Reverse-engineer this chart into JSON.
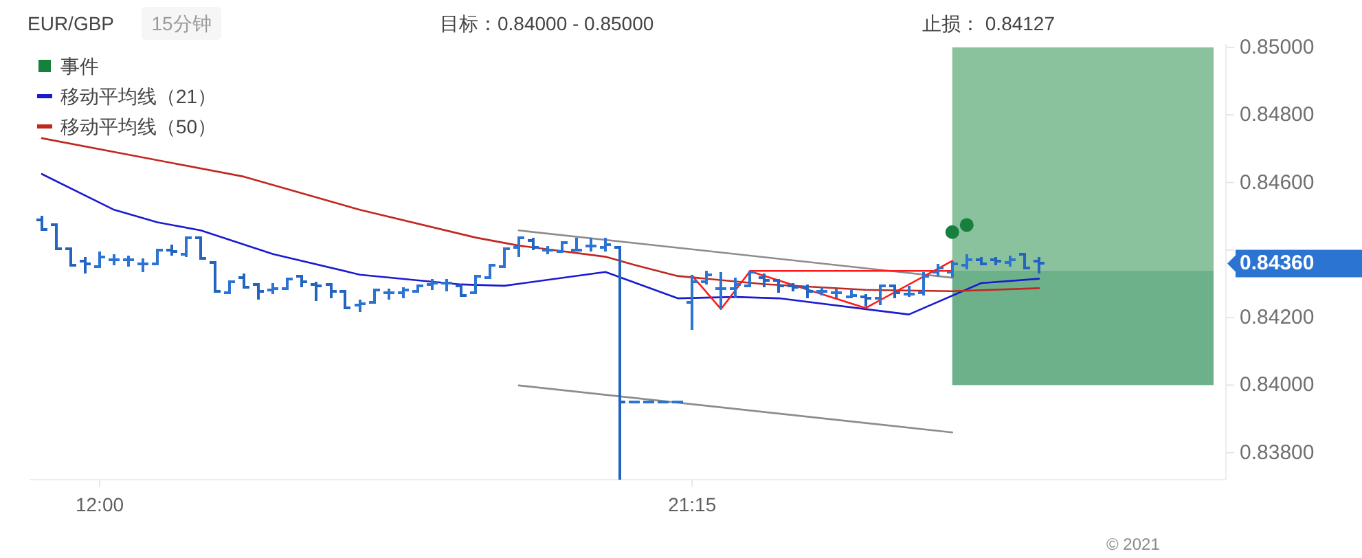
{
  "chart_data": {
    "type": "candlestick",
    "title": "EUR/GBP",
    "subtitle": "15分钟",
    "annotations": [
      "目标：0.84000 - 0.85000",
      "止损： 0.84127",
      "0.84360",
      "© 2021"
    ],
    "color": "#2b74d2",
    "colors": [
      "#2364c0",
      "#2364c0",
      "#2364c0",
      "#2364c0",
      "#2b74d2",
      "#2b74d2",
      "#2b74d2",
      "#2b74d2",
      "#2b74d2",
      "#2364c0",
      "#2b74d2",
      "#2364c0",
      "#2364c0",
      "#2b74d2",
      "#2364c0",
      "#2364c0",
      "#2b74d2",
      "#2b74d2",
      "#2364c0",
      "#2364c0",
      "#2364c0",
      "#2364c0",
      "#2b74d2",
      "#2b74d2",
      "#2b74d2",
      "#2b74d2",
      "#2b74d2",
      "#2b74d2",
      "#2b74d2",
      "#2364c0",
      "#2b74d2",
      "#2b74d2",
      "#2b74d2",
      "#2b74d2",
      "#2364c0",
      "#2b74d2",
      "#2b74d2",
      "#2b74d2",
      "#2b74d2",
      "#2b74d2",
      "#2364c0",
      "#2b74d2",
      "#2b74d2",
      "#2b74d2",
      "#2b74d2",
      "#2b74d2",
      "#2b74d2",
      "#2b74d2",
      "#2b74d2",
      "#2b74d2",
      "#2364c0",
      "#2364c0",
      "#2364c0",
      "#2364c0",
      "#2b74d2",
      "#2b74d2",
      "#2b74d2",
      "#2364c0",
      "#2b74d2",
      "#2364c0",
      "#2b74d2",
      "#2b74d2",
      "#2b74d2",
      "#2b74d2",
      "#2b74d2",
      "#2364c0",
      "#2364c0",
      "#2b74d2",
      "#2364c0",
      "#2364c0"
    ],
    "x": [
      11.098,
      11.323,
      11.549,
      11.774,
      12,
      12.226,
      12.451,
      12.677,
      12.902,
      13.128,
      13.354,
      13.579,
      13.805,
      14.03,
      14.256,
      14.482,
      14.707,
      14.933,
      15.159,
      15.384,
      15.61,
      15.835,
      16.061,
      16.287,
      16.512,
      16.738,
      16.963,
      17.189,
      17.415,
      17.64,
      17.866,
      18.091,
      18.317,
      18.543,
      18.768,
      18.994,
      19.22,
      19.445,
      19.671,
      19.896,
      20.122,
      20.348,
      20.573,
      20.799,
      21.024,
      21.25,
      21.476,
      21.701,
      21.927,
      22.152,
      22.378,
      22.604,
      22.829,
      23.055,
      23.28,
      23.506,
      23.732,
      23.957,
      24.183,
      24.409,
      24.634,
      24.86,
      25.085,
      25.311,
      25.537,
      25.762,
      25.988,
      26.213,
      26.439,
      26.665
    ],
    "ohlc": [
      [
        0.8449,
        0.84502,
        0.84461,
        0.84461
      ],
      [
        0.84474,
        0.84474,
        0.844,
        0.84404
      ],
      [
        0.84404,
        0.84404,
        0.84355,
        0.84355
      ],
      [
        0.84368,
        0.8438,
        0.84331,
        0.84359
      ],
      [
        0.84351,
        0.84396,
        0.84351,
        0.8438
      ],
      [
        0.84372,
        0.84388,
        0.84355,
        0.84372
      ],
      [
        0.84372,
        0.84384,
        0.84351,
        0.84372
      ],
      [
        0.84359,
        0.84376,
        0.84335,
        0.84359
      ],
      [
        0.84359,
        0.84404,
        0.84359,
        0.844
      ],
      [
        0.844,
        0.84416,
        0.84384,
        0.84396
      ],
      [
        0.84388,
        0.84437,
        0.8438,
        0.84437
      ],
      [
        0.84437,
        0.84437,
        0.84372,
        0.84376
      ],
      [
        0.84363,
        0.84363,
        0.84278,
        0.84278
      ],
      [
        0.84274,
        0.8431,
        0.8427,
        0.84306
      ],
      [
        0.84319,
        0.84331,
        0.8429,
        0.8429
      ],
      [
        0.84298,
        0.84298,
        0.84253,
        0.84278
      ],
      [
        0.84282,
        0.84302,
        0.8427,
        0.84286
      ],
      [
        0.84286,
        0.84315,
        0.84282,
        0.84315
      ],
      [
        0.84323,
        0.84323,
        0.8429,
        0.84306
      ],
      [
        0.84298,
        0.84306,
        0.84249,
        0.84294
      ],
      [
        0.84298,
        0.84302,
        0.84257,
        0.84278
      ],
      [
        0.84278,
        0.84278,
        0.84229,
        0.84229
      ],
      [
        0.84237,
        0.84253,
        0.84217,
        0.84241
      ],
      [
        0.84245,
        0.84282,
        0.84241,
        0.84282
      ],
      [
        0.84274,
        0.84286,
        0.84253,
        0.84274
      ],
      [
        0.84274,
        0.8429,
        0.84257,
        0.84282
      ],
      [
        0.84278,
        0.84298,
        0.84274,
        0.84294
      ],
      [
        0.84298,
        0.84315,
        0.84282,
        0.84302
      ],
      [
        0.84302,
        0.84315,
        0.84278,
        0.84302
      ],
      [
        0.84294,
        0.84298,
        0.84261,
        0.84266
      ],
      [
        0.84274,
        0.84327,
        0.84274,
        0.84323
      ],
      [
        0.84319,
        0.84355,
        0.84315,
        0.84355
      ],
      [
        0.84351,
        0.84408,
        0.84347,
        0.84404
      ],
      [
        0.84408,
        0.84437,
        0.8438,
        0.84437
      ],
      [
        0.84429,
        0.84437,
        0.844,
        0.84408
      ],
      [
        0.844,
        0.84412,
        0.84388,
        0.844
      ],
      [
        0.84396,
        0.84425,
        0.84392,
        0.84421
      ],
      [
        0.844,
        0.84437,
        0.84396,
        0.844
      ],
      [
        0.84412,
        0.84437,
        0.84396,
        0.84412
      ],
      [
        0.84408,
        0.84437,
        0.84396,
        0.84416
      ],
      [
        0.84408,
        0.84408,
        0.8372,
        0.8395
      ],
      [
        0.8395,
        0.8395,
        0.8395,
        0.8395
      ],
      [
        0.8395,
        0.8395,
        0.8395,
        0.8395
      ],
      [
        0.8395,
        0.8395,
        0.8395,
        0.8395
      ],
      [
        0.8395,
        0.8395,
        0.8395,
        0.8395
      ],
      [
        0.84245,
        0.84327,
        0.84164,
        0.84306
      ],
      [
        0.84306,
        0.84339,
        0.84298,
        0.84327
      ],
      [
        0.84286,
        0.84335,
        0.84225,
        0.84286
      ],
      [
        0.84286,
        0.84319,
        0.84257,
        0.84298
      ],
      [
        0.84294,
        0.84339,
        0.8429,
        0.84335
      ],
      [
        0.84319,
        0.84331,
        0.8429,
        0.8431
      ],
      [
        0.8431,
        0.84315,
        0.84274,
        0.84294
      ],
      [
        0.84294,
        0.84302,
        0.84278,
        0.8429
      ],
      [
        0.8429,
        0.84298,
        0.84257,
        0.84278
      ],
      [
        0.84278,
        0.8429,
        0.84266,
        0.84278
      ],
      [
        0.84274,
        0.84286,
        0.84257,
        0.84274
      ],
      [
        0.84261,
        0.84282,
        0.84257,
        0.84266
      ],
      [
        0.84261,
        0.8427,
        0.84233,
        0.84257
      ],
      [
        0.84257,
        0.84298,
        0.84237,
        0.84294
      ],
      [
        0.84294,
        0.84298,
        0.84257,
        0.84274
      ],
      [
        0.8427,
        0.84294,
        0.84261,
        0.8427
      ],
      [
        0.84274,
        0.84335,
        0.84266,
        0.84323
      ],
      [
        0.84335,
        0.84359,
        0.84323,
        0.84347
      ],
      [
        0.84335,
        0.84368,
        0.84319,
        0.84359
      ],
      [
        0.84355,
        0.84388,
        0.84343,
        0.84372
      ],
      [
        0.84372,
        0.8438,
        0.84355,
        0.84359
      ],
      [
        0.84372,
        0.8438,
        0.84355,
        0.84368
      ],
      [
        0.84363,
        0.84384,
        0.84351,
        0.84372
      ],
      [
        0.84388,
        0.84392,
        0.84343,
        0.84347
      ],
      [
        0.84368,
        0.8438,
        0.84331,
        0.8436
      ]
    ],
    "series": [
      {
        "name": "事件",
        "type": "scatter",
        "marker": "circle",
        "color": "#17803d",
        "x": [
          25.311,
          25.537
        ],
        "values": [
          0.84453,
          0.84474
        ]
      },
      {
        "name": "移动平均线（21）",
        "type": "line",
        "color": "#1a1ad0",
        "x": [
          11.098,
          12.226,
          12.902,
          13.579,
          14.707,
          16.061,
          17.64,
          18.317,
          19.896,
          21.024,
          21.927,
          22.604,
          24.634,
          25.762,
          26.665
        ],
        "values": [
          0.84625,
          0.84519,
          0.84482,
          0.84458,
          0.84388,
          0.84327,
          0.84298,
          0.84294,
          0.84335,
          0.84257,
          0.84261,
          0.84257,
          0.84209,
          0.84302,
          0.84315
        ]
      },
      {
        "name": "移动平均线（50）",
        "type": "line",
        "color": "#c0281f",
        "x": [
          11.098,
          14.256,
          16.061,
          17.866,
          18.543,
          19.896,
          20.348,
          21.024,
          22.378,
          23.957,
          25.311,
          26.665
        ],
        "values": [
          0.84731,
          0.84617,
          0.84519,
          0.84437,
          0.84413,
          0.8438,
          0.84356,
          0.84323,
          0.84299,
          0.84282,
          0.84278,
          0.84287
        ]
      },
      {
        "type": "line",
        "color": "#8c8c8c",
        "x": [
          18.543,
          25.311
        ],
        "values": [
          0.84458,
          0.84318
        ]
      },
      {
        "type": "line",
        "color": "#8c8c8c",
        "x": [
          18.543,
          25.311
        ],
        "values": [
          0.83999,
          0.8386
        ]
      },
      {
        "type": "line",
        "color": "#ff1a1a",
        "x": [
          21.25,
          21.701,
          22.152,
          23.957,
          25.311
        ],
        "values": [
          0.84324,
          0.84225,
          0.84337,
          0.84228,
          0.84368
        ]
      },
      {
        "type": "line",
        "color": "#ff1a1a",
        "x": [
          22.152,
          25.311
        ],
        "values": [
          0.84338,
          0.84338
        ]
      }
    ],
    "bands": [
      {
        "axis": "y",
        "from": 0.8434,
        "to": 0.85,
        "color": "#8bc29e"
      },
      {
        "axis": "y",
        "from": 0.84,
        "to": 0.8434,
        "color": "#6db18a"
      }
    ],
    "xlim": [
      10.916,
      29.584
    ],
    "ylim": [
      0.8372,
      0.8501
    ],
    "xticks": [
      {
        "value": 12,
        "label": "12:00"
      },
      {
        "value": 21.25,
        "label": "21:15"
      }
    ],
    "yticks": [
      {
        "value": 0.838,
        "label": "0.83800"
      },
      {
        "value": 0.84,
        "label": "0.84000"
      },
      {
        "value": 0.842,
        "label": "0.84200"
      },
      {
        "value": 0.844,
        "label": null
      },
      {
        "value": 0.846,
        "label": "0.84600"
      },
      {
        "value": 0.848,
        "label": "0.84800"
      },
      {
        "value": 0.85,
        "label": "0.85000"
      }
    ],
    "legend": "top left"
  }
}
